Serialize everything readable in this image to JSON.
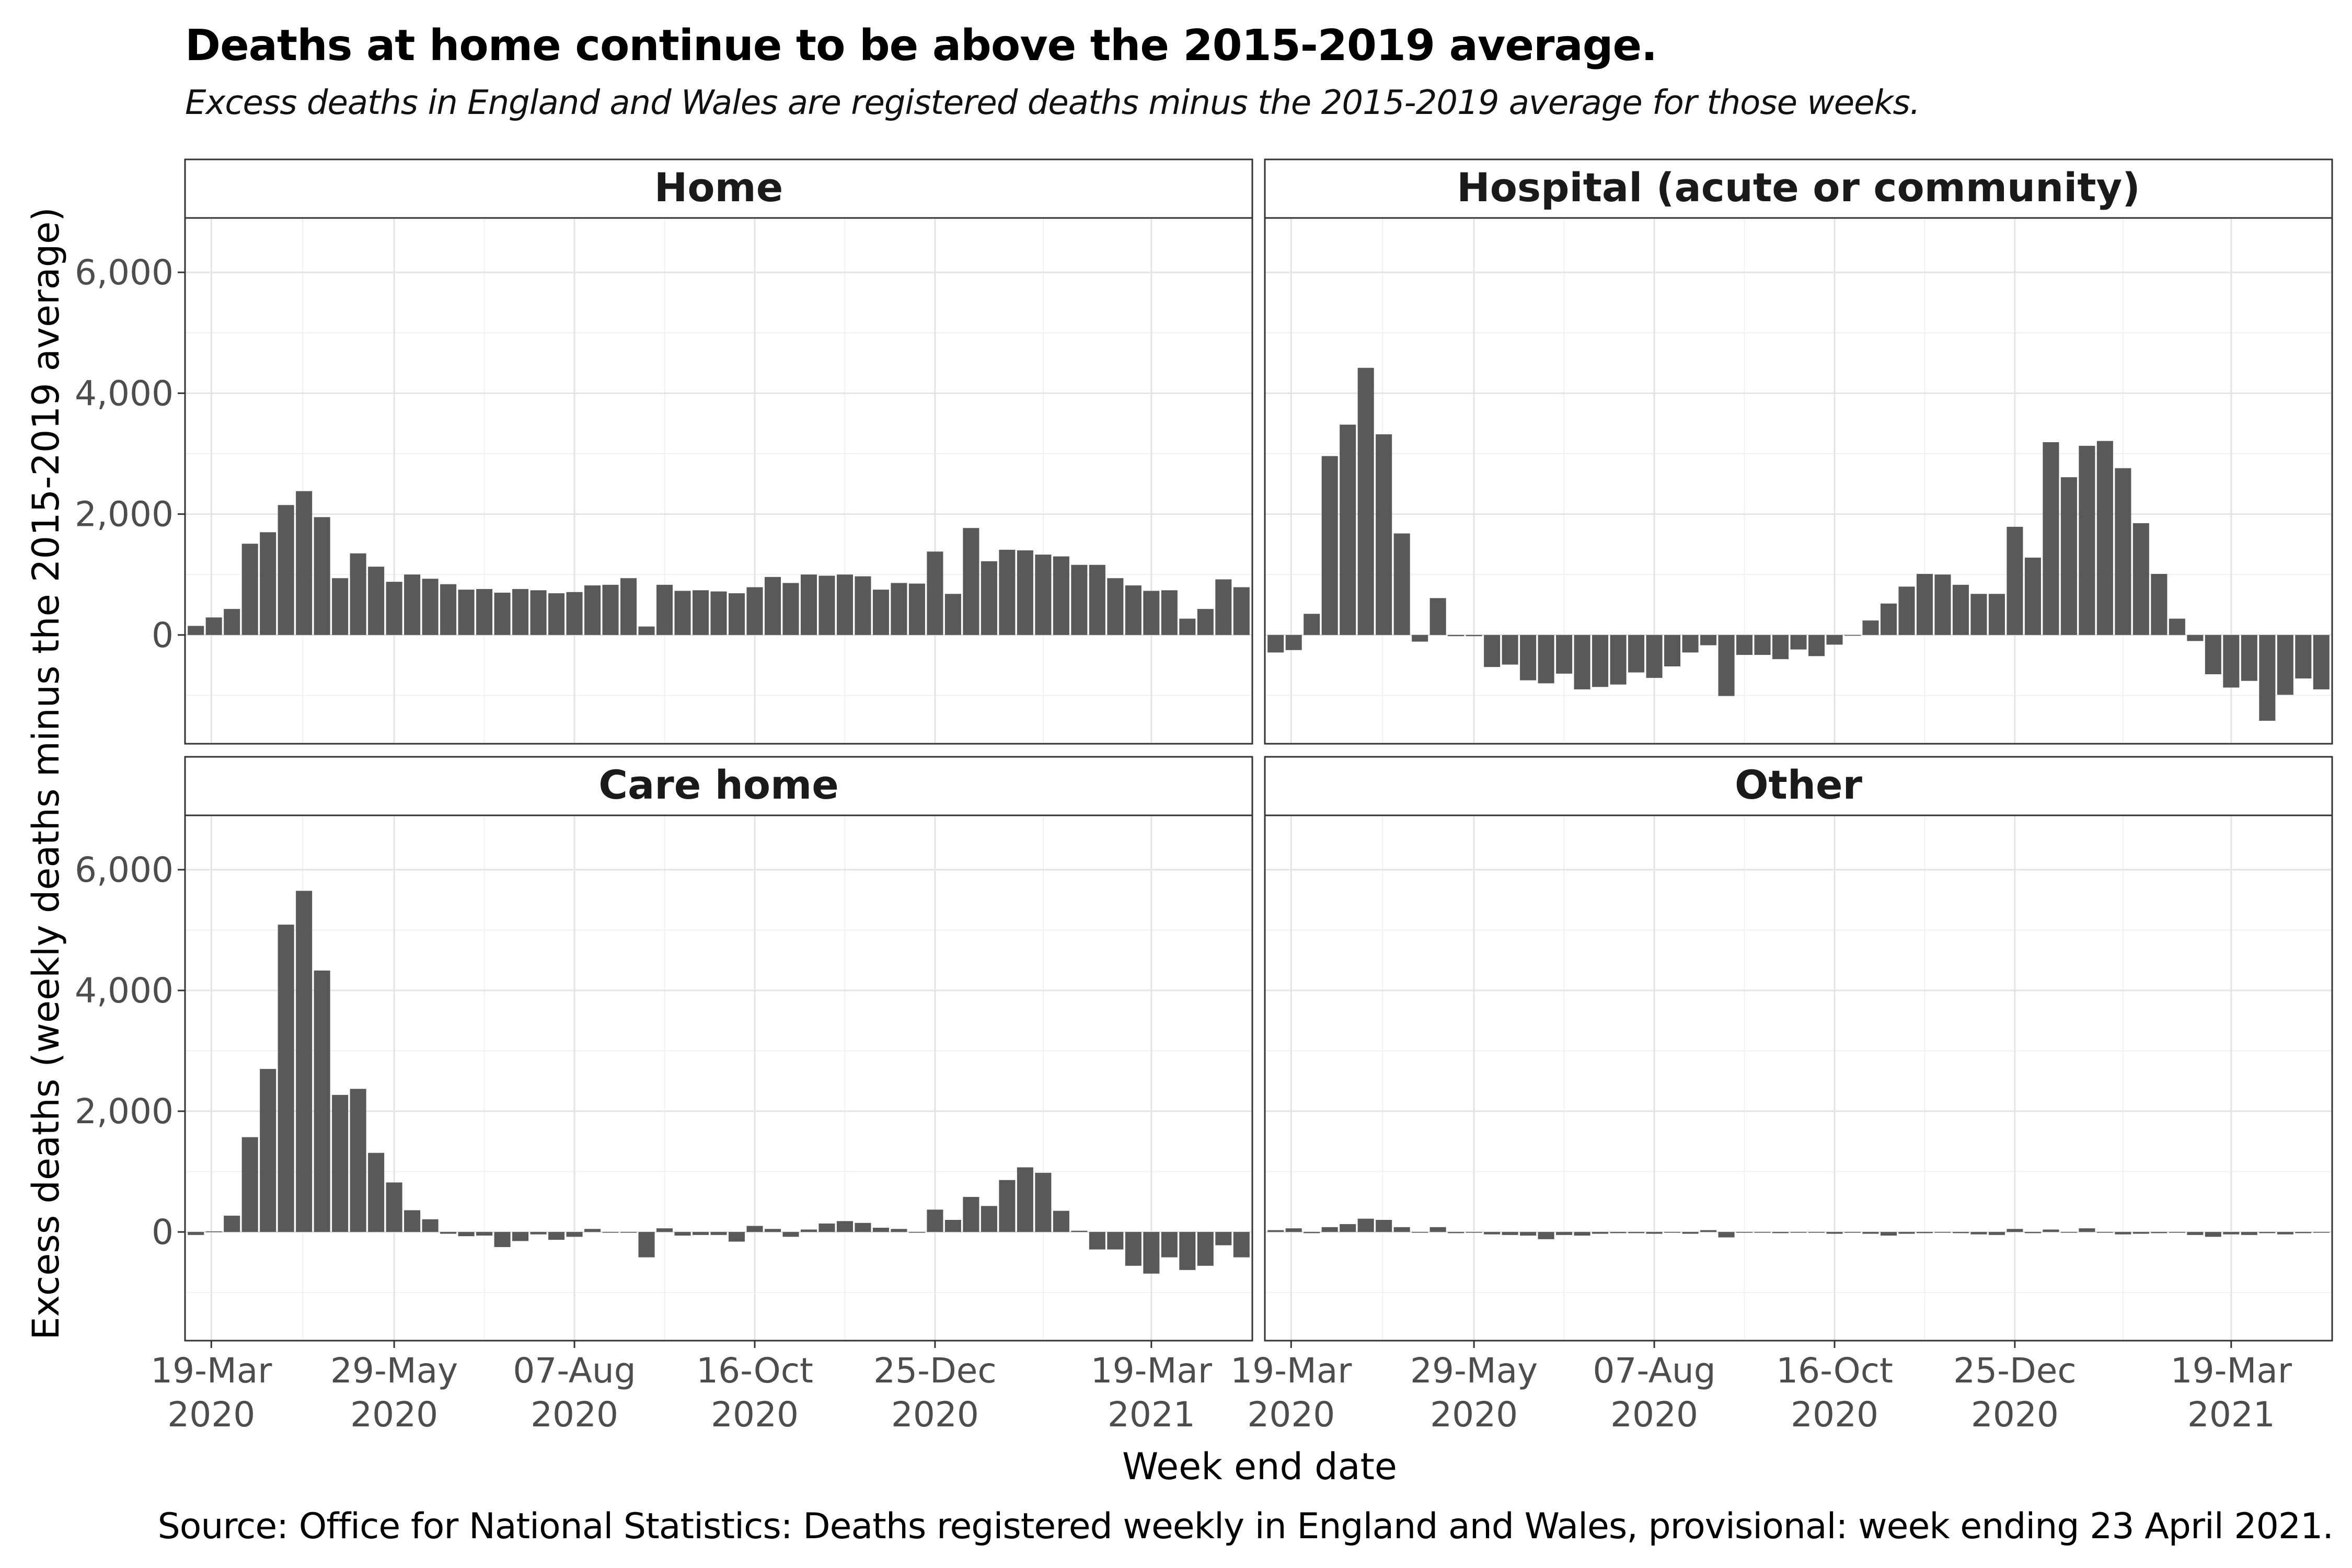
{
  "title": "Deaths at home continue to be above the 2015-2019 average.",
  "subtitle": "Excess deaths in England and Wales are registered deaths minus the 2015-2019 average for those weeks.",
  "caption": "Source: Office for National Statistics: Deaths registered weekly in England and Wales, provisional: week ending 23 April 2021.",
  "chart_data": {
    "type": "bar",
    "xlabel": "Week end date",
    "ylabel": "Excess deaths (weekly deaths minus the 2015-2019 average)",
    "ylim": [
      -1800,
      6900
    ],
    "y_ticks": [
      0,
      2000,
      4000,
      6000
    ],
    "y_tick_labels": [
      "0",
      "2,000",
      "4,000",
      "6,000"
    ],
    "x_first_week": "2020-03-13",
    "x_last_week": "2021-04-23",
    "x_ticks": [
      {
        "date": "2020-03-19",
        "label_line1": "19-Mar",
        "label_line2": "2020"
      },
      {
        "date": "2020-05-29",
        "label_line1": "29-May",
        "label_line2": "2020"
      },
      {
        "date": "2020-08-07",
        "label_line1": "07-Aug",
        "label_line2": "2020"
      },
      {
        "date": "2020-10-16",
        "label_line1": "16-Oct",
        "label_line2": "2020"
      },
      {
        "date": "2020-12-25",
        "label_line1": "25-Dec",
        "label_line2": "2020"
      },
      {
        "date": "2021-03-19",
        "label_line1": "19-Mar",
        "label_line2": "2021"
      }
    ],
    "grid": true,
    "bar_color": "#595959",
    "panels": [
      {
        "name": "Home",
        "values": [
          150,
          290,
          430,
          1510,
          1700,
          2150,
          2380,
          1950,
          940,
          1350,
          1130,
          880,
          1000,
          930,
          840,
          750,
          760,
          700,
          760,
          740,
          690,
          710,
          820,
          830,
          940,
          140,
          830,
          730,
          740,
          720,
          690,
          790,
          960,
          860,
          1000,
          980,
          1000,
          970,
          750,
          860,
          850,
          1380,
          680,
          1770,
          1220,
          1410,
          1400,
          1330,
          1300,
          1160,
          1160,
          940,
          820,
          730,
          740,
          270,
          430,
          920,
          790
        ]
      },
      {
        "name": "Hospital (acute or community)",
        "values": [
          -290,
          -250,
          350,
          2960,
          3480,
          4420,
          3320,
          1680,
          -110,
          610,
          -20,
          -20,
          -530,
          -490,
          -750,
          -800,
          -640,
          -900,
          -860,
          -820,
          -620,
          -710,
          -520,
          -290,
          -170,
          -1010,
          -330,
          -330,
          -400,
          -240,
          -350,
          -160,
          0,
          240,
          520,
          800,
          1010,
          1000,
          830,
          680,
          680,
          1790,
          1280,
          3190,
          2610,
          3130,
          3210,
          2760,
          1850,
          1010,
          270,
          -100,
          -650,
          -870,
          -760,
          -1420,
          -990,
          -720,
          -900
        ]
      },
      {
        "name": "Care home",
        "values": [
          -50,
          10,
          270,
          1570,
          2700,
          5090,
          5650,
          4330,
          2270,
          2370,
          1310,
          820,
          360,
          210,
          -30,
          -70,
          -60,
          -250,
          -150,
          -40,
          -130,
          -80,
          50,
          0,
          0,
          -420,
          60,
          -60,
          -50,
          -50,
          -160,
          100,
          50,
          -80,
          40,
          140,
          180,
          150,
          70,
          50,
          0,
          370,
          200,
          580,
          430,
          860,
          1070,
          980,
          350,
          20,
          -290,
          -290,
          -560,
          -690,
          -420,
          -630,
          -560,
          -220,
          -420
        ]
      },
      {
        "name": "Other",
        "values": [
          30,
          60,
          -20,
          80,
          130,
          220,
          200,
          80,
          0,
          80,
          -20,
          0,
          -40,
          -50,
          -60,
          -120,
          -50,
          -60,
          -30,
          -20,
          -20,
          -30,
          0,
          -30,
          30,
          -90,
          -10,
          -10,
          -20,
          -10,
          -10,
          -30,
          -10,
          -30,
          -60,
          -30,
          -20,
          0,
          -20,
          -40,
          -50,
          50,
          -20,
          40,
          0,
          60,
          0,
          -40,
          -30,
          -20,
          0,
          -50,
          -80,
          -40,
          -50,
          -20,
          -40,
          -20,
          0
        ]
      }
    ]
  }
}
